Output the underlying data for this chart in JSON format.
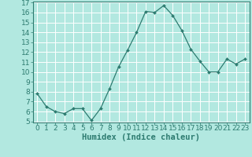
{
  "x": [
    0,
    1,
    2,
    3,
    4,
    5,
    6,
    7,
    8,
    9,
    10,
    11,
    12,
    13,
    14,
    15,
    16,
    17,
    18,
    19,
    20,
    21,
    22,
    23
  ],
  "y": [
    7.8,
    6.5,
    6.0,
    5.8,
    6.3,
    6.3,
    5.1,
    6.3,
    8.3,
    10.5,
    12.2,
    14.0,
    16.1,
    16.0,
    16.7,
    15.7,
    14.2,
    12.3,
    11.1,
    10.0,
    10.0,
    11.3,
    10.8,
    11.3
  ],
  "line_color": "#2d7b70",
  "marker_color": "#2d7b70",
  "bg_color": "#b2e8e0",
  "grid_color": "#ffffff",
  "xlabel": "Humidex (Indice chaleur)",
  "ylim": [
    5,
    17
  ],
  "xlim": [
    -0.5,
    23.5
  ],
  "yticks": [
    5,
    6,
    7,
    8,
    9,
    10,
    11,
    12,
    13,
    14,
    15,
    16,
    17
  ],
  "xticks": [
    0,
    1,
    2,
    3,
    4,
    5,
    6,
    7,
    8,
    9,
    10,
    11,
    12,
    13,
    14,
    15,
    16,
    17,
    18,
    19,
    20,
    21,
    22,
    23
  ],
  "xlabel_fontsize": 7.5,
  "tick_fontsize": 6.5
}
